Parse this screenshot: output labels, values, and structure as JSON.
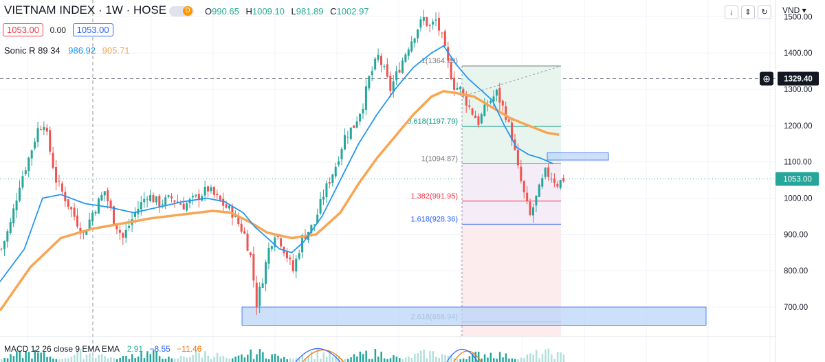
{
  "header": {
    "title": "VIETNAM INDEX · 1W · HOSE",
    "badge": "D",
    "ohlc": {
      "o_label": "O",
      "o": "990.65",
      "h_label": "H",
      "h": "1009.10",
      "l_label": "L",
      "l": "981.89",
      "c_label": "C",
      "c": "1002.97"
    },
    "bid": "1053.00",
    "spread": "0.00",
    "ask": "1053.00",
    "currency": "VND"
  },
  "indicators": {
    "sonic": {
      "label": "Sonic R 89 34",
      "v1": "986.92",
      "v2": "905.71"
    },
    "macd": {
      "label": "MACD 12 26 close 9 EMA EMA",
      "v1": "2.91",
      "v2": "−8.55",
      "v3": "−11.46"
    }
  },
  "colors": {
    "up": "#26a69a",
    "down": "#ef5350",
    "ema_fast": "#2196f3",
    "ema_slow": "#f7a552",
    "fib_green": "#089981",
    "fib_red": "#f23645",
    "fib_blue": "#2962ff",
    "zone": "#bbd5f7"
  },
  "chart_data": {
    "type": "candlestick",
    "title": "VIETNAM INDEX · 1W · HOSE",
    "ylim": [
      640,
      1520
    ],
    "y_ticks": [
      "1500.00",
      "1400.00",
      "1300.00",
      "1200.00",
      "1100.00",
      "1000.00",
      "900.00",
      "800.00",
      "700.00"
    ],
    "price_labels": {
      "crosshair": "1329.40",
      "last": "1053.00"
    },
    "close_path": [
      [
        0,
        860
      ],
      [
        3,
        930
      ],
      [
        6,
        1040
      ],
      [
        9,
        1110
      ],
      [
        12,
        1190
      ],
      [
        14,
        1210
      ],
      [
        16,
        1130
      ],
      [
        18,
        1050
      ],
      [
        21,
        1000
      ],
      [
        24,
        950
      ],
      [
        27,
        900
      ],
      [
        30,
        960
      ],
      [
        34,
        1020
      ],
      [
        37,
        940
      ],
      [
        40,
        890
      ],
      [
        44,
        960
      ],
      [
        48,
        1010
      ],
      [
        52,
        985
      ],
      [
        56,
        1000
      ],
      [
        60,
        980
      ],
      [
        64,
        1000
      ],
      [
        68,
        1025
      ],
      [
        72,
        990
      ],
      [
        76,
        960
      ],
      [
        80,
        900
      ],
      [
        82,
        840
      ],
      [
        84,
        710
      ],
      [
        86,
        780
      ],
      [
        88,
        860
      ],
      [
        90,
        905
      ],
      [
        92,
        880
      ],
      [
        94,
        840
      ],
      [
        96,
        800
      ],
      [
        99,
        890
      ],
      [
        103,
        930
      ],
      [
        106,
        1010
      ],
      [
        110,
        1090
      ],
      [
        113,
        1170
      ],
      [
        116,
        1200
      ],
      [
        119,
        1260
      ],
      [
        121,
        1330
      ],
      [
        124,
        1390
      ],
      [
        126,
        1350
      ],
      [
        128,
        1300
      ],
      [
        131,
        1360
      ],
      [
        134,
        1420
      ],
      [
        137,
        1470
      ],
      [
        139,
        1495
      ],
      [
        141,
        1470
      ],
      [
        143,
        1490
      ],
      [
        145,
        1440
      ],
      [
        147,
        1370
      ],
      [
        149,
        1310
      ],
      [
        151,
        1300
      ],
      [
        154,
        1250
      ],
      [
        157,
        1210
      ],
      [
        160,
        1260
      ],
      [
        163,
        1290
      ],
      [
        166,
        1230
      ],
      [
        168,
        1170
      ],
      [
        170,
        1080
      ],
      [
        172,
        1010
      ],
      [
        174,
        950
      ],
      [
        176,
        1000
      ],
      [
        179,
        1070
      ],
      [
        181,
        1060
      ],
      [
        183,
        1040
      ],
      [
        185,
        1053
      ]
    ],
    "ema_fast": [
      [
        0,
        770
      ],
      [
        8,
        860
      ],
      [
        14,
        1000
      ],
      [
        20,
        1010
      ],
      [
        28,
        985
      ],
      [
        36,
        975
      ],
      [
        44,
        960
      ],
      [
        52,
        975
      ],
      [
        60,
        990
      ],
      [
        68,
        1000
      ],
      [
        74,
        990
      ],
      [
        80,
        960
      ],
      [
        84,
        920
      ],
      [
        88,
        890
      ],
      [
        92,
        860
      ],
      [
        96,
        850
      ],
      [
        100,
        880
      ],
      [
        106,
        950
      ],
      [
        112,
        1050
      ],
      [
        118,
        1150
      ],
      [
        124,
        1230
      ],
      [
        130,
        1300
      ],
      [
        136,
        1360
      ],
      [
        142,
        1400
      ],
      [
        146,
        1420
      ],
      [
        150,
        1370
      ],
      [
        154,
        1330
      ],
      [
        158,
        1300
      ],
      [
        162,
        1270
      ],
      [
        166,
        1200
      ],
      [
        170,
        1140
      ],
      [
        174,
        1120
      ],
      [
        178,
        1110
      ],
      [
        182,
        1095
      ]
    ],
    "ema_slow": [
      [
        0,
        690
      ],
      [
        10,
        810
      ],
      [
        20,
        890
      ],
      [
        30,
        915
      ],
      [
        40,
        930
      ],
      [
        50,
        945
      ],
      [
        60,
        955
      ],
      [
        70,
        965
      ],
      [
        76,
        960
      ],
      [
        82,
        935
      ],
      [
        88,
        905
      ],
      [
        96,
        890
      ],
      [
        104,
        900
      ],
      [
        112,
        960
      ],
      [
        118,
        1040
      ],
      [
        124,
        1110
      ],
      [
        130,
        1170
      ],
      [
        136,
        1230
      ],
      [
        142,
        1280
      ],
      [
        146,
        1295
      ],
      [
        150,
        1290
      ],
      [
        156,
        1280
      ],
      [
        162,
        1250
      ],
      [
        168,
        1220
      ],
      [
        174,
        1200
      ],
      [
        180,
        1180
      ],
      [
        184,
        1175
      ]
    ],
    "fibonacci": [
      {
        "label": "1(1364.29)",
        "level": 1364.29
      },
      {
        "label": "0.618(1197.79)",
        "level": 1197.79
      },
      {
        "label": "1(1094.87)",
        "level": 1094.87
      },
      {
        "label": "1.382(991.95)",
        "level": 991.95
      },
      {
        "label": "1.618(928.36)",
        "level": 928.36
      },
      {
        "label": "2.618(658.94)",
        "level": 658.94
      }
    ],
    "zones": [
      {
        "from": 650,
        "to": 700
      },
      {
        "from": 1105,
        "to": 1125
      }
    ],
    "dotted_levels": [
      1053,
      1329.4
    ]
  }
}
